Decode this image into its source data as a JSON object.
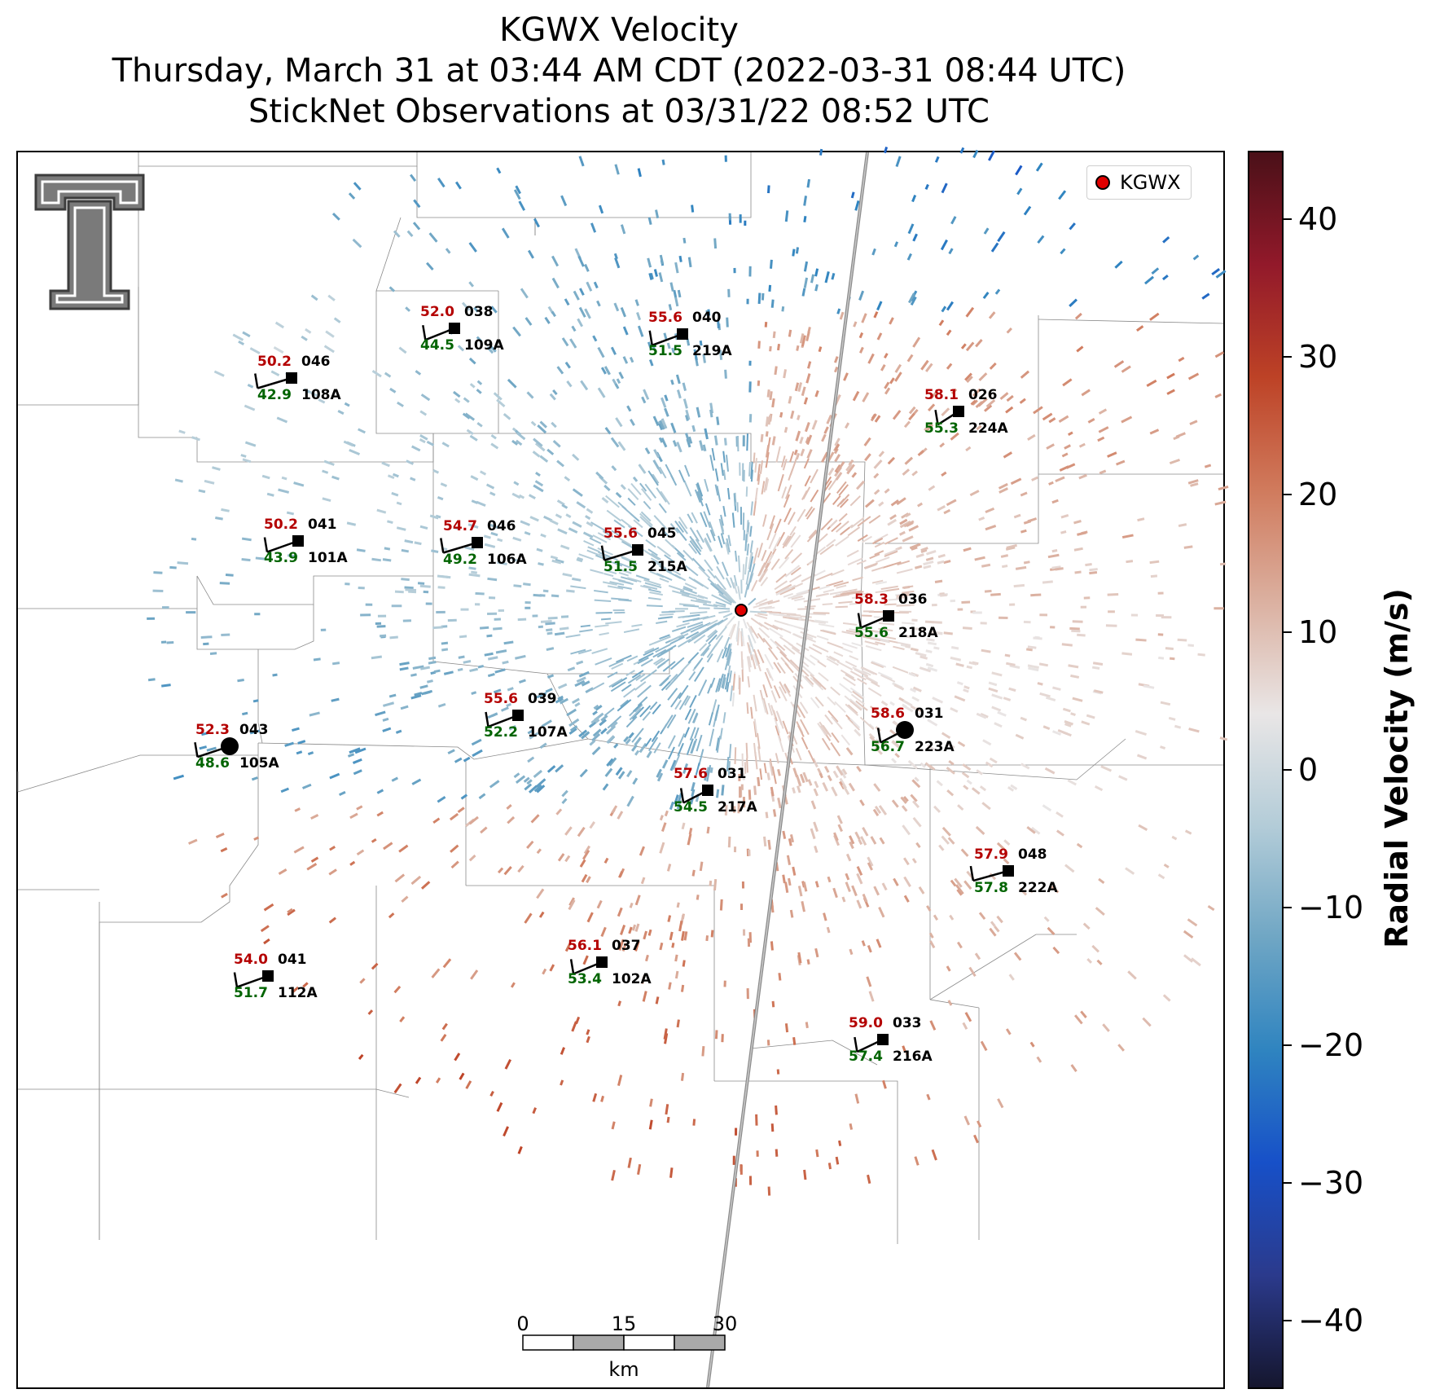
{
  "title": {
    "line1": "KGWX Velocity",
    "line2": "Thursday, March 31 at 03:44 AM CDT (2022-03-31 08:44 UTC)",
    "line3": "StickNet Observations at 03/31/22 08:52 UTC"
  },
  "legend": {
    "label": "KGWX",
    "marker_color": "#e00000"
  },
  "logo": {
    "name": "texas-tech-double-t-logo"
  },
  "stations": [
    {
      "id": "108A",
      "temp": "50.2",
      "dew": "42.9",
      "dir": "046",
      "shape": "square"
    },
    {
      "id": "109A",
      "temp": "52.0",
      "dew": "44.5",
      "dir": "038",
      "shape": "square"
    },
    {
      "id": "219A",
      "temp": "55.6",
      "dew": "51.5",
      "dir": "040",
      "shape": "square"
    },
    {
      "id": "224A",
      "temp": "58.1",
      "dew": "55.3",
      "dir": "026",
      "shape": "square"
    },
    {
      "id": "101A",
      "temp": "50.2",
      "dew": "43.9",
      "dir": "041",
      "shape": "square"
    },
    {
      "id": "106A",
      "temp": "54.7",
      "dew": "49.2",
      "dir": "046",
      "shape": "square"
    },
    {
      "id": "215A",
      "temp": "55.6",
      "dew": "51.5",
      "dir": "045",
      "shape": "square"
    },
    {
      "id": "218A",
      "temp": "58.3",
      "dew": "55.6",
      "dir": "036",
      "shape": "square"
    },
    {
      "id": "107A",
      "temp": "55.6",
      "dew": "52.2",
      "dir": "039",
      "shape": "square"
    },
    {
      "id": "105A",
      "temp": "52.3",
      "dew": "48.6",
      "dir": "043",
      "shape": "circle"
    },
    {
      "id": "223A",
      "temp": "58.6",
      "dew": "56.7",
      "dir": "031",
      "shape": "circle"
    },
    {
      "id": "217A",
      "temp": "57.6",
      "dew": "54.5",
      "dir": "031",
      "shape": "square"
    },
    {
      "id": "222A",
      "temp": "57.9",
      "dew": "57.8",
      "dir": "048",
      "shape": "square"
    },
    {
      "id": "112A",
      "temp": "54.0",
      "dew": "51.7",
      "dir": "041",
      "shape": "square"
    },
    {
      "id": "102A",
      "temp": "56.1",
      "dew": "53.4",
      "dir": "037",
      "shape": "square"
    },
    {
      "id": "216A",
      "temp": "59.0",
      "dew": "57.4",
      "dir": "033",
      "shape": "square"
    }
  ],
  "scalebar": {
    "ticks": [
      "0",
      "15",
      "30"
    ],
    "unit": "km"
  },
  "colorbar": {
    "title": "Radial Velocity (m/s)",
    "ticks": [
      "40",
      "30",
      "20",
      "10",
      "0",
      "−10",
      "−20",
      "−30",
      "−40"
    ],
    "range": [
      -45,
      45
    ],
    "colors": [
      "#15162e",
      "#2b3a8c",
      "#1750c8",
      "#2f84c0",
      "#6fa6c4",
      "#b3ccd8",
      "#e9e6e6",
      "#dbb0a0",
      "#d07a5c",
      "#bd4226",
      "#92192a",
      "#4a1018"
    ]
  },
  "colors": {
    "temp": "#b40000",
    "dew": "#006400",
    "id": "#000000",
    "tdir": "#000000"
  }
}
